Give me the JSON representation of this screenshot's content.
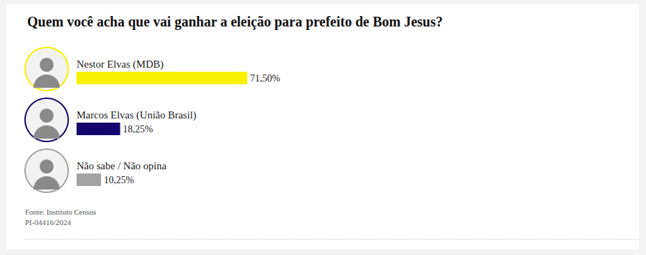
{
  "chart_data": {
    "type": "bar",
    "orientation": "horizontal",
    "title": "Quem você acha que vai ganhar a eleição para prefeito de Bom Jesus?",
    "categories": [
      "Nestor Elvas (MDB)",
      "Marcos Elvas (União Brasil)",
      "Não sabe / Não opina"
    ],
    "values": [
      71.5,
      18.25,
      10.25
    ],
    "value_labels": [
      "71,50%",
      "18,25%",
      "10,25%"
    ],
    "colors": [
      "#f7f000",
      "#15066e",
      "#a3a3a3"
    ],
    "xlim": [
      0,
      100
    ],
    "grid": false,
    "data_labels": true,
    "tick_labels": "y",
    "annotations": [
      "Fonte: Instituto Census",
      "PI-04416/2024"
    ]
  }
}
